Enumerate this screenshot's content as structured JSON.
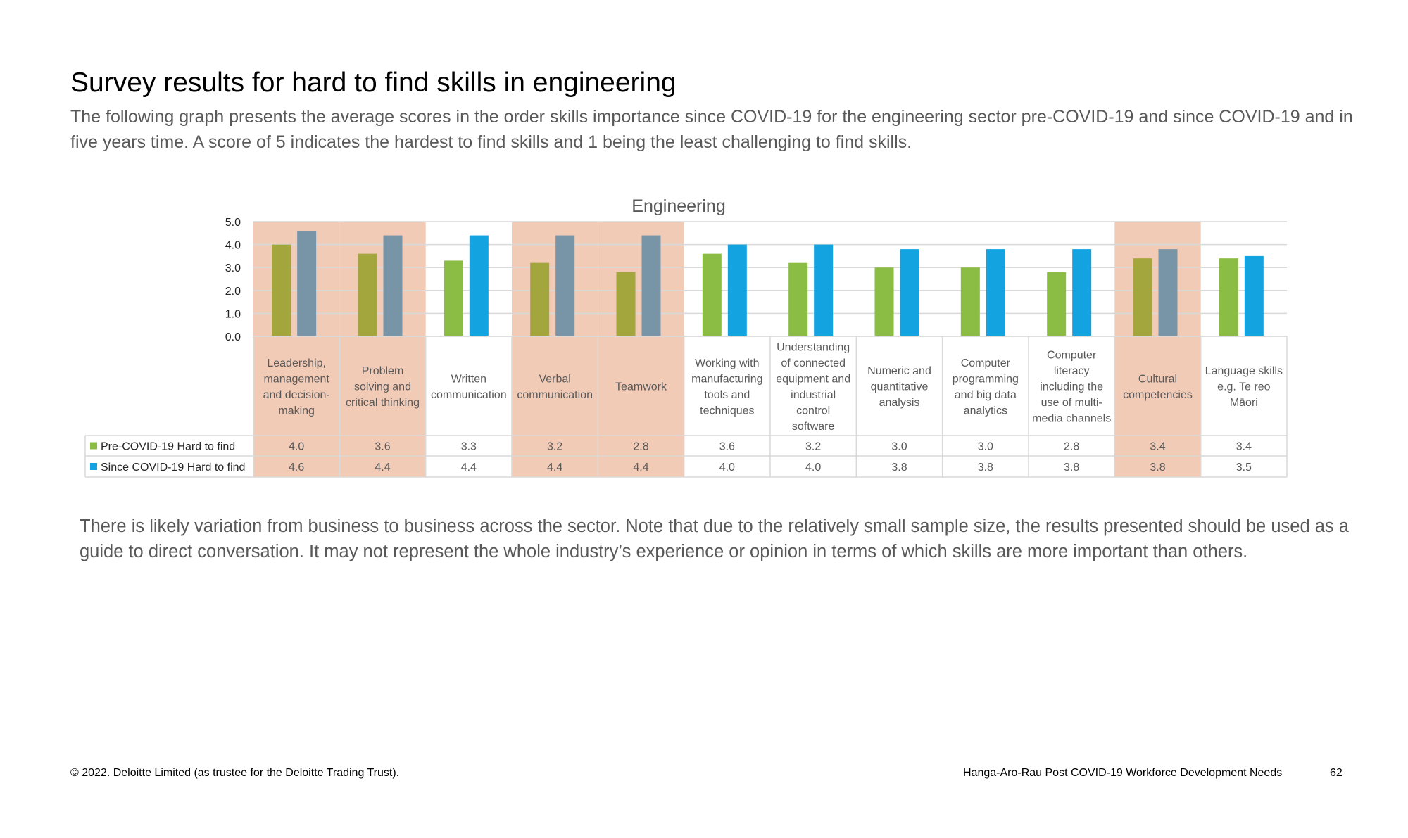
{
  "page": {
    "title": "Survey results for hard to find skills in engineering",
    "intro": "The following graph presents the average scores in the order skills importance since COVID-19 for the engineering sector pre-COVID-19 and since COVID-19 and in five years time. A score of 5 indicates the hardest to find skills and 1 being the least challenging to find skills.",
    "note": "There is likely variation from business to business across the sector. Note that due to the relatively small sample size, the results presented should be used as a guide to direct conversation. It may not represent the whole industry’s experience or opinion in terms of which skills are more important than others.",
    "footer_left": "© 2022. Deloitte Limited (as trustee for the Deloitte Trading Trust).",
    "footer_right": "Hanga-Aro-Rau Post COVID-19 Workforce Development Needs",
    "page_number": "62"
  },
  "chart_data": {
    "type": "bar",
    "title": "Engineering",
    "xlabel": "",
    "ylabel": "",
    "ylim": [
      0,
      5
    ],
    "yticks": [
      "0.0",
      "1.0",
      "2.0",
      "3.0",
      "4.0",
      "5.0"
    ],
    "grid": true,
    "legend": "data-table-left",
    "categories": [
      "Leadership, management and decision-making",
      "Problem solving and critical thinking",
      "Written communication",
      "Verbal communication",
      "Teamwork",
      "Working with manufacturing tools and techniques",
      "Understanding of connected equipment and industrial control software",
      "Numeric and quantitative analysis",
      "Computer programming and big data analytics",
      "Computer literacy including the use of multi-media channels",
      "Cultural competencies",
      "Language skills e.g. Te reo Māori"
    ],
    "category_lines": [
      [
        "Leadership,",
        "management",
        "and decision-",
        "making"
      ],
      [
        "Problem",
        "solving and",
        "critical thinking"
      ],
      [
        "Written",
        "communication"
      ],
      [
        "Verbal",
        "communication"
      ],
      [
        "Teamwork"
      ],
      [
        "Working with",
        "manufacturing",
        "tools and",
        "techniques"
      ],
      [
        "Understanding",
        "of connected",
        "equipment and",
        "industrial",
        "control",
        "software"
      ],
      [
        "Numeric and",
        "quantitative",
        "analysis"
      ],
      [
        "Computer",
        "programming",
        "and big data",
        "analytics"
      ],
      [
        "Computer",
        "literacy",
        "including the",
        "use of multi-",
        "media channels"
      ],
      [
        "Cultural",
        "competencies"
      ],
      [
        "Language skills",
        "e.g. Te reo",
        "Māori"
      ]
    ],
    "highlighted": [
      true,
      true,
      false,
      true,
      true,
      false,
      false,
      false,
      false,
      false,
      true,
      false
    ],
    "series": [
      {
        "name": "Pre-COVID-19 Hard to find",
        "values": [
          4.0,
          3.6,
          3.3,
          3.2,
          2.8,
          3.6,
          3.2,
          3.0,
          3.0,
          2.8,
          3.4,
          3.4
        ],
        "labels": [
          "4.0",
          "3.6",
          "3.3",
          "3.2",
          "2.8",
          "3.6",
          "3.2",
          "3.0",
          "3.0",
          "2.8",
          "3.4",
          "3.4"
        ],
        "color": "#8bbd45",
        "highlight_color": "#a3a63c"
      },
      {
        "name": "Since COVID-19 Hard to find",
        "values": [
          4.6,
          4.4,
          4.4,
          4.4,
          4.4,
          4.0,
          4.0,
          3.8,
          3.8,
          3.8,
          3.8,
          3.5
        ],
        "labels": [
          "4.6",
          "4.4",
          "4.4",
          "4.4",
          "4.4",
          "4.0",
          "4.0",
          "3.8",
          "3.8",
          "3.8",
          "3.8",
          "3.5"
        ],
        "color": "#13a3e1",
        "highlight_color": "#7895a8"
      }
    ],
    "colors": {
      "highlight_band": "#f2cbb7",
      "grid": "#d9d9d9",
      "table_border": "#d9d9d9",
      "text": "#595959"
    }
  }
}
